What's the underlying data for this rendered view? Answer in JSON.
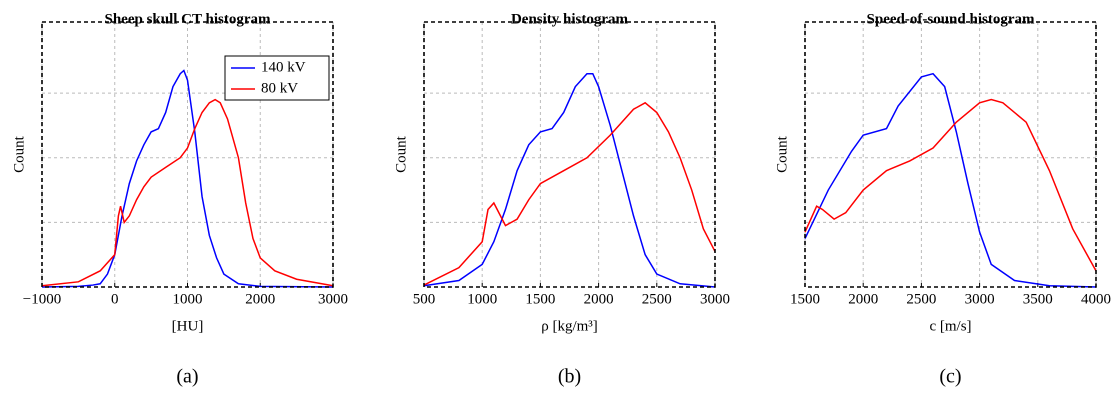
{
  "chart_data": [
    {
      "type": "line",
      "title": "Sheep skull CT histogram",
      "x_label": "[HU]",
      "y_label": "Count",
      "caption": "(a)",
      "xlim": [
        -1000,
        3000
      ],
      "xticks": [
        {
          "value": -1000,
          "label": "−1000"
        },
        0,
        1000,
        2000,
        3000
      ],
      "ylim": [
        0,
        4.1
      ],
      "ygrid": [
        1,
        2,
        3
      ],
      "grid": true,
      "legend": "upper right",
      "series": [
        {
          "name": "140 kV",
          "color": "#0000ff",
          "x": [
            -1000,
            -500,
            -300,
            -200,
            -100,
            0,
            100,
            200,
            300,
            400,
            500,
            600,
            700,
            800,
            900,
            950,
            1000,
            1100,
            1200,
            1300,
            1400,
            1500,
            1700,
            2000,
            3000
          ],
          "values": [
            0,
            0.01,
            0.03,
            0.05,
            0.2,
            0.5,
            1.1,
            1.6,
            1.95,
            2.2,
            2.4,
            2.45,
            2.7,
            3.1,
            3.3,
            3.35,
            3.2,
            2.4,
            1.4,
            0.8,
            0.45,
            0.2,
            0.05,
            0.01,
            0
          ]
        },
        {
          "name": "80 kV",
          "color": "#ff0000",
          "x": [
            -1000,
            -500,
            -200,
            0,
            50,
            80,
            130,
            200,
            300,
            400,
            500,
            700,
            900,
            1000,
            1100,
            1200,
            1300,
            1380,
            1450,
            1550,
            1700,
            1800,
            1900,
            2000,
            2200,
            2500,
            3000
          ],
          "values": [
            0.02,
            0.08,
            0.25,
            0.5,
            1.1,
            1.25,
            1.0,
            1.1,
            1.35,
            1.55,
            1.7,
            1.85,
            2.0,
            2.15,
            2.45,
            2.7,
            2.85,
            2.9,
            2.85,
            2.6,
            2.0,
            1.3,
            0.75,
            0.45,
            0.25,
            0.12,
            0.02
          ]
        }
      ]
    },
    {
      "type": "line",
      "title": "Density histogram",
      "x_label": "ρ [kg/m³]",
      "y_label": "Count",
      "caption": "(b)",
      "xlim": [
        500,
        3000
      ],
      "xticks": [
        500,
        1000,
        1500,
        2000,
        2500,
        3000
      ],
      "ylim": [
        0,
        4.1
      ],
      "ygrid": [
        1,
        2,
        3
      ],
      "grid": true,
      "series": [
        {
          "color": "#0000ff",
          "x": [
            500,
            800,
            1000,
            1100,
            1200,
            1300,
            1400,
            1500,
            1600,
            1700,
            1800,
            1900,
            1950,
            2000,
            2100,
            2200,
            2300,
            2400,
            2500,
            2700,
            3000
          ],
          "values": [
            0.02,
            0.1,
            0.35,
            0.7,
            1.2,
            1.8,
            2.2,
            2.4,
            2.45,
            2.7,
            3.1,
            3.3,
            3.3,
            3.1,
            2.5,
            1.8,
            1.1,
            0.5,
            0.2,
            0.05,
            0
          ]
        },
        {
          "color": "#ff0000",
          "x": [
            500,
            800,
            1000,
            1050,
            1100,
            1200,
            1300,
            1400,
            1500,
            1700,
            1900,
            2100,
            2300,
            2400,
            2500,
            2600,
            2700,
            2800,
            2900,
            3000
          ],
          "values": [
            0.03,
            0.3,
            0.7,
            1.2,
            1.3,
            0.95,
            1.05,
            1.35,
            1.6,
            1.8,
            2.0,
            2.35,
            2.75,
            2.85,
            2.7,
            2.4,
            2.0,
            1.5,
            0.9,
            0.55
          ]
        }
      ]
    },
    {
      "type": "line",
      "title": "Speed-of-sound histogram",
      "x_label": "c [m/s]",
      "y_label": "Count",
      "caption": "(c)",
      "xlim": [
        1500,
        4000
      ],
      "xticks": [
        1500,
        2000,
        2500,
        3000,
        3500,
        4000
      ],
      "ylim": [
        0,
        4.1
      ],
      "ygrid": [
        1,
        2,
        3
      ],
      "grid": true,
      "series": [
        {
          "color": "#0000ff",
          "x": [
            1500,
            1700,
            1900,
            2000,
            2200,
            2300,
            2500,
            2600,
            2700,
            2800,
            2900,
            3000,
            3100,
            3300,
            3600,
            4000
          ],
          "values": [
            0.75,
            1.5,
            2.1,
            2.35,
            2.45,
            2.8,
            3.25,
            3.3,
            3.1,
            2.4,
            1.6,
            0.85,
            0.35,
            0.1,
            0.02,
            0
          ]
        },
        {
          "color": "#ff0000",
          "x": [
            1500,
            1600,
            1650,
            1750,
            1850,
            2000,
            2200,
            2400,
            2600,
            2800,
            3000,
            3100,
            3200,
            3400,
            3600,
            3800,
            4000
          ],
          "values": [
            0.85,
            1.25,
            1.2,
            1.05,
            1.15,
            1.5,
            1.8,
            1.95,
            2.15,
            2.55,
            2.85,
            2.9,
            2.85,
            2.55,
            1.8,
            0.9,
            0.25
          ]
        }
      ]
    }
  ]
}
